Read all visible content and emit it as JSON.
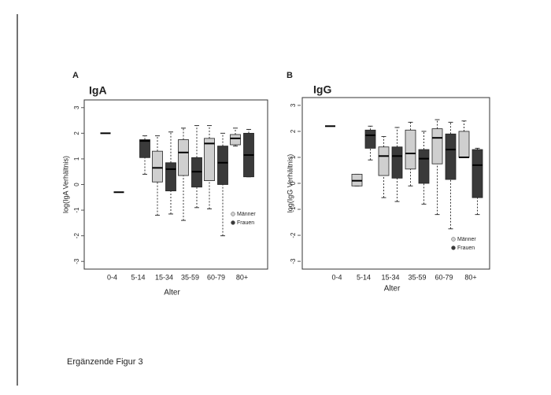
{
  "caption": "Ergänzende Figur 3",
  "chart_data": [
    {
      "type": "boxplot",
      "panel": "A",
      "title": "IgA",
      "y_label": "log(IgA Verhältnis)",
      "x_label": "Alter",
      "categories": [
        "0-4",
        "5-14",
        "15-34",
        "35-59",
        "60-79",
        "80+"
      ],
      "ylim": [
        -3.3,
        3.3
      ],
      "yticks": [
        -3,
        -2,
        -1,
        0,
        1,
        2,
        3
      ],
      "legend": "lower right",
      "series": [
        {
          "name": "Männer",
          "color": "#cfcfcf",
          "values": [
            {
              "low": 2.0,
              "q1": 2.0,
              "median": 2.0,
              "q3": 2.0,
              "high": 2.0
            },
            null,
            {
              "low": -1.2,
              "q1": 0.1,
              "median": 0.65,
              "q3": 1.3,
              "high": 1.9
            },
            {
              "low": -1.4,
              "q1": 0.35,
              "median": 1.25,
              "q3": 1.75,
              "high": 2.2
            },
            {
              "low": -0.95,
              "q1": 0.15,
              "median": 1.6,
              "q3": 1.8,
              "high": 2.3
            },
            {
              "low": 1.5,
              "q1": 1.55,
              "median": 1.8,
              "q3": 1.95,
              "high": 2.2
            }
          ]
        },
        {
          "name": "Frauen",
          "color": "#3a3a3a",
          "values": [
            {
              "low": -0.3,
              "q1": -0.3,
              "median": -0.3,
              "q3": -0.3,
              "high": -0.3
            },
            {
              "low": 0.4,
              "q1": 1.05,
              "median": 1.7,
              "q3": 1.75,
              "high": 1.9
            },
            {
              "low": -1.15,
              "q1": -0.25,
              "median": 0.6,
              "q3": 0.85,
              "high": 2.05
            },
            {
              "low": -0.9,
              "q1": -0.1,
              "median": 0.5,
              "q3": 1.05,
              "high": 2.3
            },
            {
              "low": -2.0,
              "q1": 0.0,
              "median": 0.85,
              "q3": 1.5,
              "high": 2.0
            },
            {
              "low": 0.3,
              "q1": 0.3,
              "median": 1.15,
              "q3": 2.0,
              "high": 2.15
            }
          ]
        }
      ]
    },
    {
      "type": "boxplot",
      "panel": "B",
      "title": "IgG",
      "y_label": "log(IgG Verhältnis)",
      "x_label": "Alter",
      "categories": [
        "0-4",
        "5-14",
        "15-34",
        "35-59",
        "60-79",
        "80+"
      ],
      "ylim": [
        -3.3,
        3.3
      ],
      "yticks": [
        -3,
        -2,
        -1,
        0,
        1,
        2,
        3
      ],
      "legend": "lower right",
      "series": [
        {
          "name": "Männer",
          "color": "#cfcfcf",
          "values": [
            {
              "low": 2.2,
              "q1": 2.2,
              "median": 2.2,
              "q3": 2.2,
              "high": 2.2
            },
            {
              "low": -0.1,
              "q1": -0.1,
              "median": 0.1,
              "q3": 0.35,
              "high": 0.35
            },
            {
              "low": -0.55,
              "q1": 0.3,
              "median": 1.05,
              "q3": 1.4,
              "high": 1.8
            },
            {
              "low": -0.1,
              "q1": 0.55,
              "median": 1.15,
              "q3": 2.05,
              "high": 2.35
            },
            {
              "low": -1.2,
              "q1": 0.75,
              "median": 1.75,
              "q3": 2.1,
              "high": 2.45
            },
            {
              "low": 1.0,
              "q1": 1.0,
              "median": 1.0,
              "q3": 2.0,
              "high": 2.4
            }
          ]
        },
        {
          "name": "Frauen",
          "color": "#3a3a3a",
          "values": [
            null,
            {
              "low": 0.9,
              "q1": 1.35,
              "median": 1.85,
              "q3": 2.05,
              "high": 2.2
            },
            {
              "low": -0.7,
              "q1": 0.2,
              "median": 1.05,
              "q3": 1.4,
              "high": 2.15
            },
            {
              "low": -0.8,
              "q1": 0.0,
              "median": 0.95,
              "q3": 1.3,
              "high": 2.0
            },
            {
              "low": -1.75,
              "q1": 0.15,
              "median": 1.3,
              "q3": 1.9,
              "high": 2.35
            },
            {
              "low": -1.2,
              "q1": -0.55,
              "median": 0.7,
              "q3": 1.3,
              "high": 1.35
            }
          ]
        }
      ]
    }
  ]
}
